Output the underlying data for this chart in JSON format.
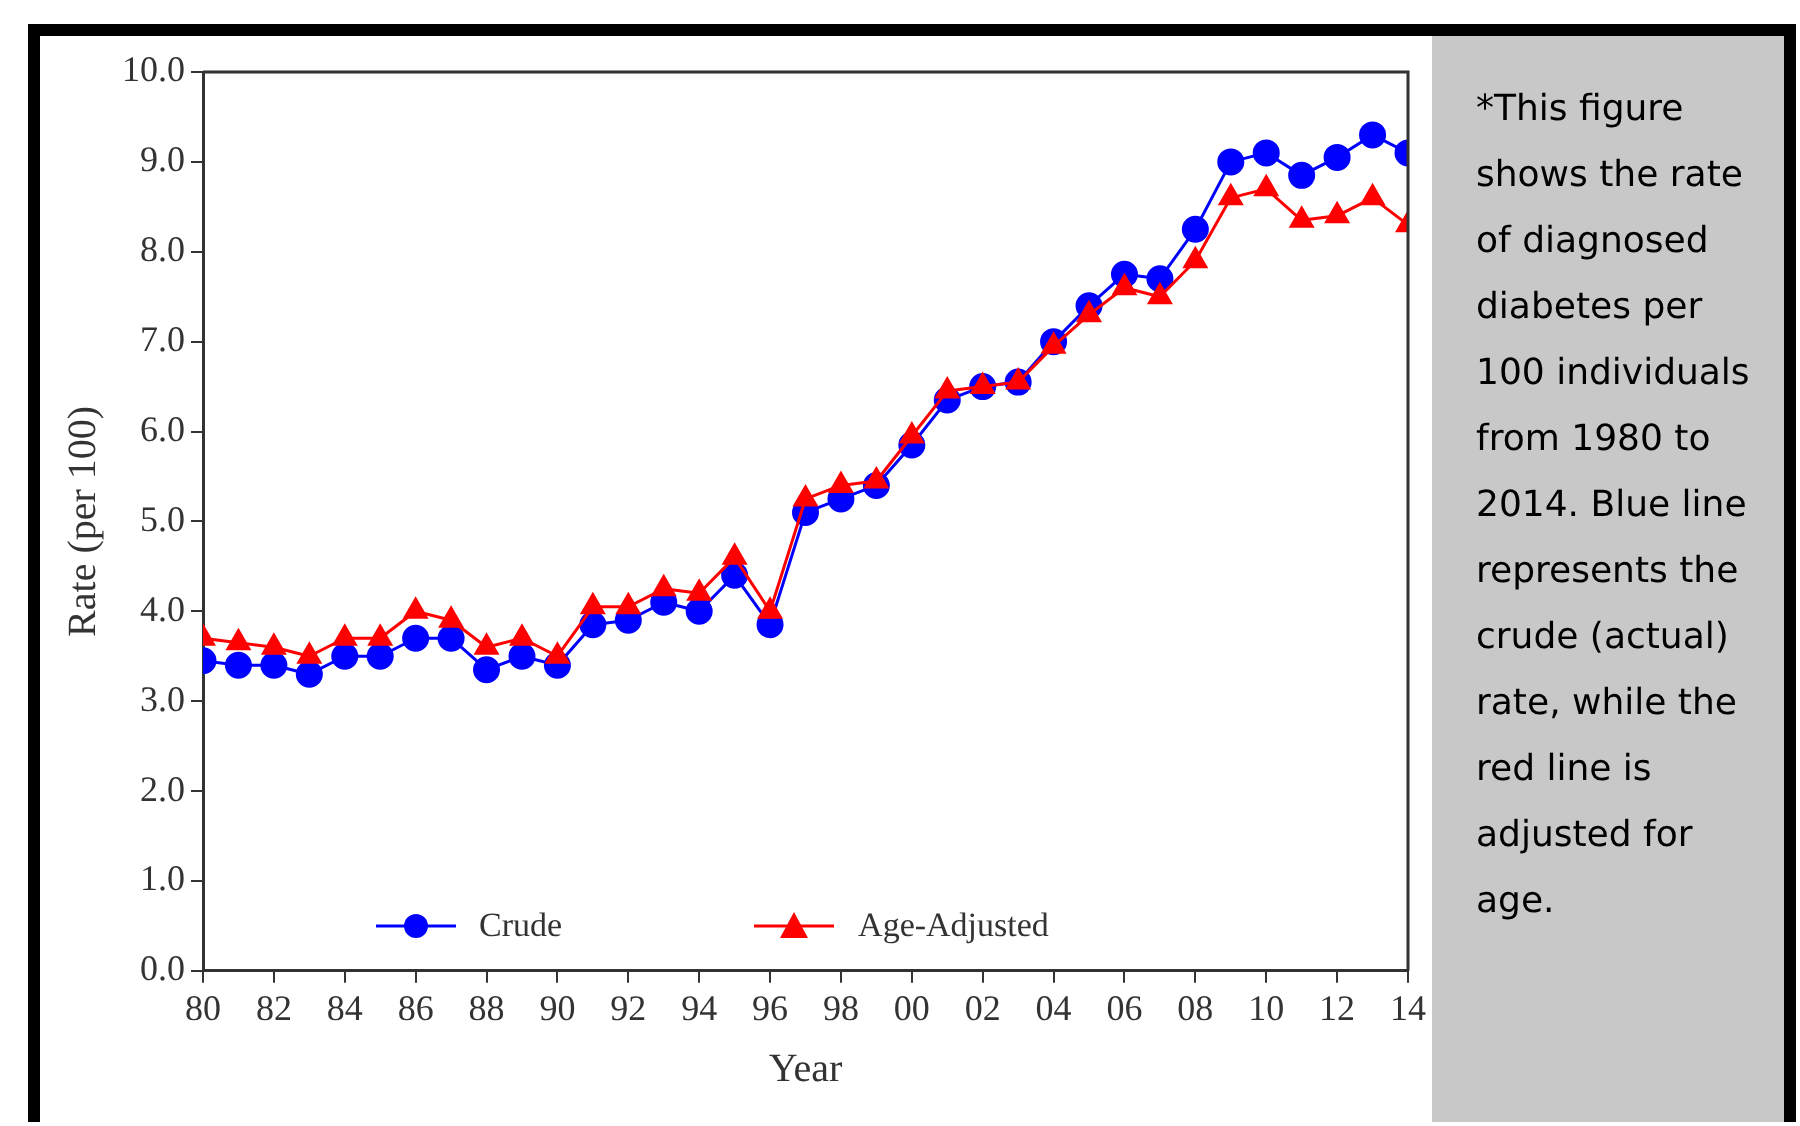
{
  "chart_data": {
    "type": "line",
    "xlabel": "Year",
    "ylabel": "Rate (per 100)",
    "x": [
      1980,
      1981,
      1982,
      1983,
      1984,
      1985,
      1986,
      1987,
      1988,
      1989,
      1990,
      1991,
      1992,
      1993,
      1994,
      1995,
      1996,
      1997,
      1998,
      1999,
      2000,
      2001,
      2002,
      2003,
      2004,
      2005,
      2006,
      2007,
      2008,
      2009,
      2010,
      2011,
      2012,
      2013,
      2014
    ],
    "series": [
      {
        "name": "Crude",
        "color": "#0000ff",
        "marker": "circle",
        "values": [
          3.45,
          3.4,
          3.4,
          3.3,
          3.5,
          3.5,
          3.7,
          3.7,
          3.35,
          3.5,
          3.4,
          3.85,
          3.9,
          4.1,
          4.0,
          4.4,
          3.85,
          5.1,
          5.25,
          5.4,
          5.85,
          6.35,
          6.5,
          6.55,
          7.0,
          7.4,
          7.75,
          7.7,
          8.25,
          9.0,
          9.1,
          8.85,
          9.05,
          9.3,
          9.1
        ]
      },
      {
        "name": "Age-Adjusted",
        "color": "#ff0000",
        "marker": "triangle",
        "values": [
          3.7,
          3.65,
          3.6,
          3.5,
          3.7,
          3.7,
          4.0,
          3.9,
          3.6,
          3.7,
          3.5,
          4.05,
          4.05,
          4.25,
          4.2,
          4.6,
          4.0,
          5.25,
          5.4,
          5.45,
          5.95,
          6.45,
          6.5,
          6.55,
          6.95,
          7.3,
          7.6,
          7.5,
          7.9,
          8.6,
          8.7,
          8.35,
          8.4,
          8.6,
          8.3
        ]
      }
    ],
    "xlim": [
      1980,
      2014
    ],
    "xticks": [
      {
        "value": 1980,
        "label": "80"
      },
      {
        "value": 1982,
        "label": "82"
      },
      {
        "value": 1984,
        "label": "84"
      },
      {
        "value": 1986,
        "label": "86"
      },
      {
        "value": 1988,
        "label": "88"
      },
      {
        "value": 1990,
        "label": "90"
      },
      {
        "value": 1992,
        "label": "92"
      },
      {
        "value": 1994,
        "label": "94"
      },
      {
        "value": 1996,
        "label": "96"
      },
      {
        "value": 1998,
        "label": "98"
      },
      {
        "value": 2000,
        "label": "00"
      },
      {
        "value": 2002,
        "label": "02"
      },
      {
        "value": 2004,
        "label": "04"
      },
      {
        "value": 2006,
        "label": "06"
      },
      {
        "value": 2008,
        "label": "08"
      },
      {
        "value": 2010,
        "label": "10"
      },
      {
        "value": 2012,
        "label": "12"
      },
      {
        "value": 2014,
        "label": "14"
      }
    ],
    "ylim": [
      0,
      10
    ],
    "yticks": [
      {
        "value": 0,
        "label": "0.0"
      },
      {
        "value": 1,
        "label": "1.0"
      },
      {
        "value": 2,
        "label": "2.0"
      },
      {
        "value": 3,
        "label": "3.0"
      },
      {
        "value": 4,
        "label": "4.0"
      },
      {
        "value": 5,
        "label": "5.0"
      },
      {
        "value": 6,
        "label": "6.0"
      },
      {
        "value": 7,
        "label": "7.0"
      },
      {
        "value": 8,
        "label": "8.0"
      },
      {
        "value": 9,
        "label": "9.0"
      },
      {
        "value": 10,
        "label": "10.0"
      }
    ],
    "grid": false,
    "legend": "bottom",
    "line_style": "solid",
    "annotations": [
      "*This figure shows the rate of diagnosed diabetes per 100 individuals from 1980 to 2014. Blue line represents the crude (actual) rate, while the red line is adjusted for age."
    ]
  }
}
